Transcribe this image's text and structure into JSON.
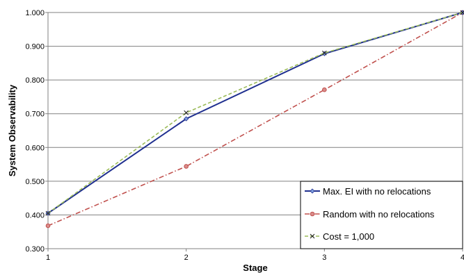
{
  "chart_data": {
    "type": "line",
    "xlabel": "Stage",
    "ylabel": "System Observability",
    "x": [
      1,
      2,
      3,
      4
    ],
    "xticks": [
      "1",
      "2",
      "3",
      "4"
    ],
    "yticks": [
      "0.300",
      "0.400",
      "0.500",
      "0.600",
      "0.700",
      "0.800",
      "0.900",
      "1.000"
    ],
    "ylim": [
      0.3,
      1.0
    ],
    "grid": "horizontal",
    "legend_position": "bottom-right",
    "series": [
      {
        "name": "Max. EI with no relocations",
        "values": [
          0.405,
          0.685,
          0.878,
          1.0
        ],
        "color": "#1f2f8f",
        "dash": "solid",
        "marker": "diamond"
      },
      {
        "name": "Random with no relocations",
        "values": [
          0.368,
          0.544,
          0.771,
          1.0
        ],
        "color": "#c0504d",
        "dash": "dash-dot",
        "marker": "circle"
      },
      {
        "name": "Cost = 1,000",
        "values": [
          0.405,
          0.703,
          0.88,
          1.0
        ],
        "color": "#9bbb59",
        "dash": "dashed",
        "marker": "x"
      }
    ]
  }
}
